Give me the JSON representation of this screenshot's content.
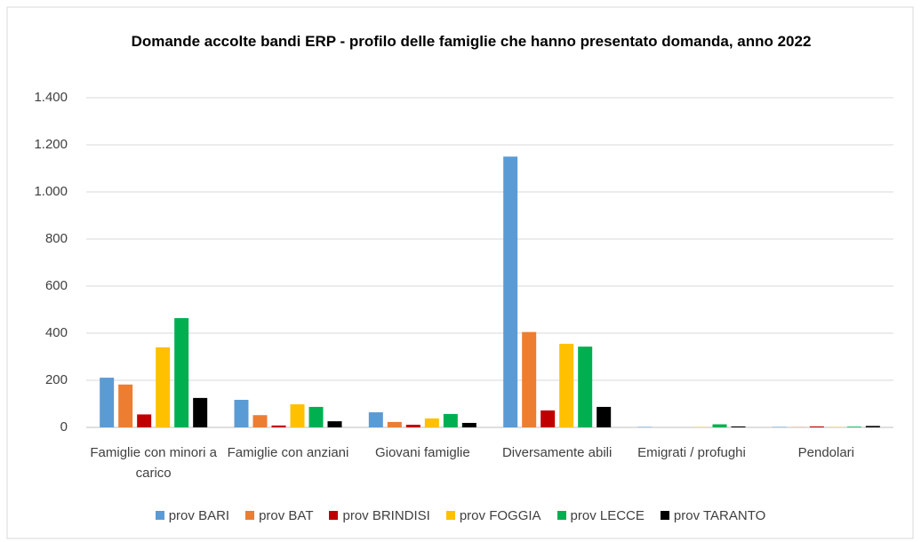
{
  "chart_data": {
    "type": "bar",
    "title": "Domande accolte bandi ERP - profilo delle famiglie che hanno presentato domanda, anno 2022",
    "categories": [
      "Famiglie con minori a carico",
      "Famiglie con anziani",
      "Giovani famiglie",
      "Diversamente abili",
      "Emigrati / profughi",
      "Pendolari"
    ],
    "series": [
      {
        "name": "prov BARI",
        "color": "#5b9bd5",
        "values": [
          211,
          117,
          64,
          1150,
          2,
          2
        ]
      },
      {
        "name": "prov BAT",
        "color": "#ed7d31",
        "values": [
          182,
          52,
          23,
          405,
          0,
          1
        ]
      },
      {
        "name": "prov BRINDISI",
        "color": "#c00000",
        "values": [
          55,
          8,
          11,
          72,
          0,
          4
        ]
      },
      {
        "name": "prov FOGGIA",
        "color": "#ffc000",
        "values": [
          340,
          98,
          38,
          355,
          1,
          1
        ]
      },
      {
        "name": "prov LECCE",
        "color": "#00b050",
        "values": [
          464,
          87,
          57,
          343,
          13,
          3
        ]
      },
      {
        "name": "prov TARANTO",
        "color": "#000000",
        "values": [
          125,
          26,
          19,
          87,
          4,
          6
        ]
      }
    ],
    "ylim": [
      0,
      1400
    ],
    "yticks": [
      0,
      200,
      400,
      600,
      800,
      {
        "value": 1000,
        "label": "1.000"
      },
      {
        "value": 1200,
        "label": "1.200"
      },
      {
        "value": 1400,
        "label": "1.400"
      }
    ],
    "grid": true,
    "legend": "bottom"
  }
}
